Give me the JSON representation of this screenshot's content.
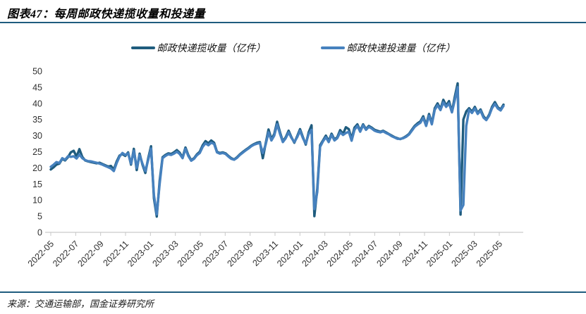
{
  "header": {
    "title": "图表47：每周邮政快递揽收量和投递量"
  },
  "footer": {
    "source": "来源：交通运输部，国金证券研究所"
  },
  "colors": {
    "accent_rule": "#1F5C7E",
    "axis_line": "#c9c9c9",
    "collection_line": "#1F5C7E",
    "delivery_line": "#4681BE"
  },
  "legend": [
    {
      "label": "邮政快递揽收量（亿件）",
      "color": "#1F5C7E"
    },
    {
      "label": "邮政快递投递量（亿件）",
      "color": "#4681BE"
    }
  ],
  "chart_data": {
    "type": "line",
    "title": "每周邮政快递揽收量和投递量",
    "xlabel": "",
    "ylabel": "",
    "x_unit": "week (2022-05 to 2025-05)",
    "grid": false,
    "legend_position": "top",
    "ylim": [
      0,
      50
    ],
    "y_ticks": [
      0,
      5,
      10,
      15,
      20,
      25,
      30,
      35,
      40,
      45,
      50
    ],
    "x_tick_labels": [
      "2022-05",
      "2022-07",
      "2022-09",
      "2022-11",
      "2023-01",
      "2023-03",
      "2023-05",
      "2023-07",
      "2023-09",
      "2023-11",
      "2024-01",
      "2024-03",
      "2024-05",
      "2024-07",
      "2024-09",
      "2024-11",
      "2025-01",
      "2025-03",
      "2025-05"
    ],
    "series": [
      {
        "name": "邮政快递揽收量（亿件）",
        "data_name": "collection-line",
        "color": "#1F5C7E",
        "values": [
          19.5,
          20.2,
          21.0,
          21.3,
          22.8,
          22.3,
          23.3,
          24.8,
          25.3,
          23.5,
          25.8,
          23.4,
          22.3,
          22.0,
          21.8,
          21.6,
          21.4,
          21.6,
          21.2,
          20.8,
          20.4,
          20.6,
          19.5,
          22.0,
          23.8,
          24.3,
          23.7,
          24.8,
          21.0,
          25.9,
          19.3,
          24.4,
          21.0,
          18.4,
          23.0,
          26.7,
          10.5,
          4.9,
          16.0,
          23.3,
          24.0,
          24.5,
          24.3,
          24.8,
          25.5,
          24.7,
          23.2,
          26.3,
          24.0,
          22.4,
          23.0,
          24.2,
          25.0,
          27.0,
          28.3,
          27.6,
          28.5,
          27.8,
          25.0,
          24.6,
          24.8,
          24.5,
          23.7,
          23.0,
          22.6,
          23.3,
          24.2,
          24.9,
          25.6,
          26.2,
          26.9,
          27.4,
          27.8,
          28.0,
          23.0,
          27.5,
          31.9,
          28.9,
          30.5,
          34.3,
          31.0,
          28.2,
          29.5,
          31.5,
          29.5,
          27.8,
          29.8,
          32.0,
          29.5,
          27.2,
          31.0,
          33.2,
          5.0,
          13.5,
          27.0,
          28.5,
          30.0,
          28.3,
          30.6,
          28.8,
          29.5,
          31.7,
          30.5,
          32.6,
          32.0,
          29.0,
          32.5,
          33.5,
          31.5,
          33.5,
          32.0,
          33.0,
          32.5,
          31.8,
          31.5,
          31.2,
          31.5,
          31.0,
          30.5,
          30.0,
          29.5,
          29.2,
          28.9,
          29.3,
          29.8,
          30.5,
          31.8,
          33.0,
          33.8,
          34.4,
          36.0,
          33.3,
          36.7,
          33.8,
          38.5,
          40.0,
          38.2,
          41.1,
          39.3,
          40.7,
          37.4,
          42.0,
          46.2,
          5.5,
          35.0,
          37.5,
          38.5,
          37.4,
          38.9,
          37.0,
          38.1,
          36.0,
          35.0,
          36.5,
          38.9,
          40.4,
          38.8,
          38.1,
          39.6
        ]
      },
      {
        "name": "邮政快递投递量（亿件）",
        "data_name": "delivery-line",
        "color": "#4681BE",
        "values": [
          20.3,
          21.0,
          21.8,
          21.5,
          23.0,
          22.5,
          23.6,
          23.4,
          23.6,
          22.9,
          24.1,
          23.0,
          22.4,
          22.1,
          22.0,
          21.8,
          21.6,
          21.3,
          21.0,
          20.6,
          20.2,
          19.8,
          19.0,
          21.5,
          23.5,
          24.6,
          24.0,
          24.5,
          21.3,
          25.3,
          20.0,
          24.0,
          21.3,
          19.0,
          22.5,
          26.0,
          11.5,
          5.6,
          15.0,
          23.0,
          23.7,
          24.2,
          24.0,
          24.4,
          25.0,
          24.3,
          23.0,
          25.9,
          23.7,
          22.2,
          22.8,
          23.9,
          24.6,
          26.5,
          27.6,
          27.0,
          27.8,
          27.4,
          24.8,
          24.4,
          24.6,
          24.3,
          23.5,
          22.8,
          22.5,
          23.1,
          24.0,
          24.7,
          25.4,
          26.0,
          26.7,
          27.2,
          27.5,
          27.7,
          24.6,
          27.2,
          31.0,
          28.5,
          30.0,
          33.5,
          30.5,
          28.0,
          29.2,
          31.0,
          29.3,
          28.0,
          29.5,
          31.5,
          29.2,
          27.5,
          30.5,
          31.8,
          7.2,
          12.5,
          26.5,
          28.2,
          29.5,
          28.0,
          30.2,
          28.5,
          29.2,
          31.0,
          30.2,
          30.8,
          31.2,
          28.4,
          31.8,
          33.0,
          31.2,
          33.2,
          31.8,
          32.7,
          32.2,
          31.5,
          31.2,
          31.0,
          31.3,
          30.8,
          30.4,
          29.8,
          29.4,
          29.0,
          29.0,
          29.2,
          29.6,
          30.3,
          31.5,
          32.7,
          33.4,
          34.0,
          35.5,
          33.0,
          36.2,
          33.5,
          38.0,
          39.4,
          37.9,
          40.3,
          38.9,
          40.0,
          37.2,
          41.0,
          45.0,
          6.8,
          8.5,
          33.0,
          38.0,
          37.0,
          38.4,
          36.7,
          37.7,
          35.6,
          34.8,
          36.2,
          38.5,
          39.8,
          38.4,
          37.8,
          39.2
        ]
      }
    ]
  }
}
